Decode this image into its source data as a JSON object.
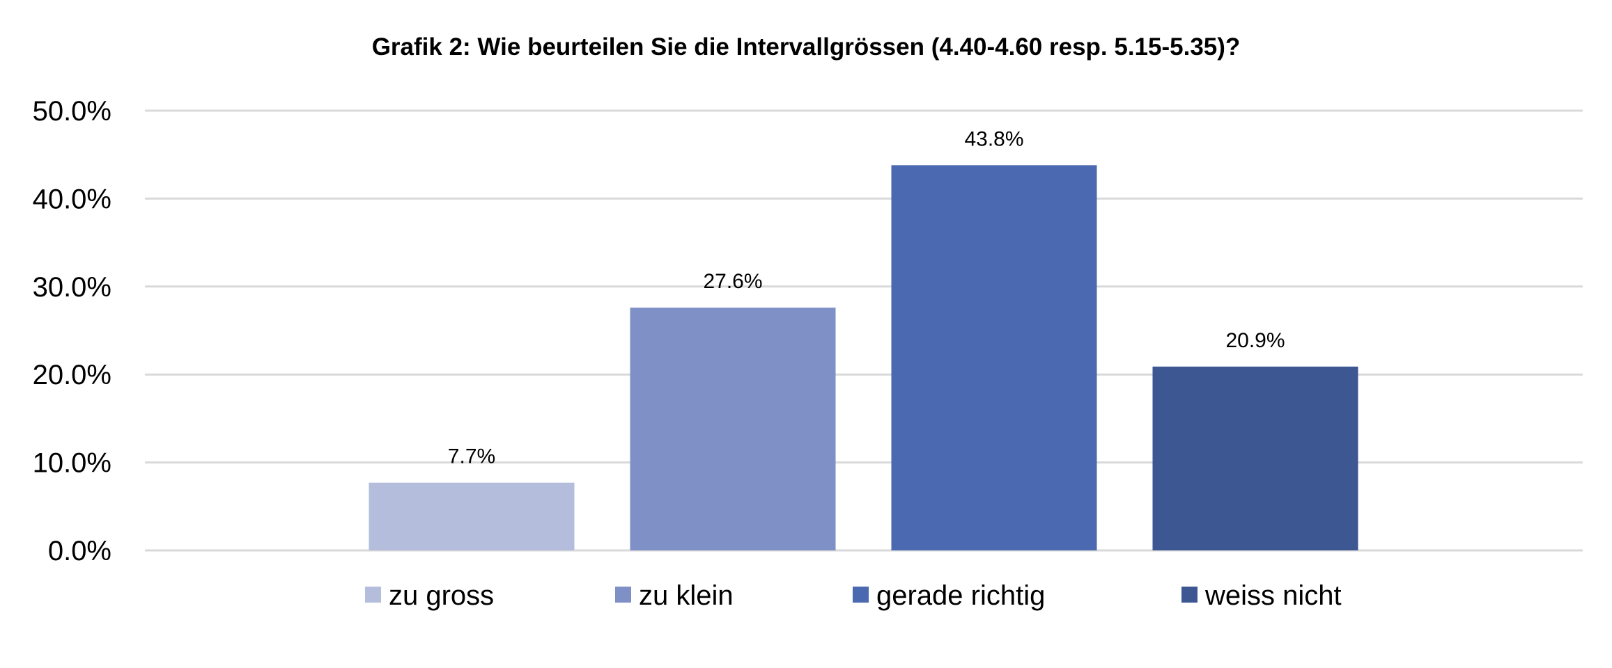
{
  "chart_data": {
    "type": "bar",
    "title": "Grafik 2: Wie beurteilen Sie die Intervallgrössen (4.40-4.60 resp. 5.15-5.35)?",
    "xlabel": "",
    "ylabel": "",
    "ylim": [
      0,
      50
    ],
    "yticks": [
      0,
      10,
      20,
      30,
      40,
      50
    ],
    "ytick_labels": [
      "0.0%",
      "10.0%",
      "20.0%",
      "30.0%",
      "40.0%",
      "50.0%"
    ],
    "grid": true,
    "legend_position": "bottom",
    "categories": [
      "zu gross",
      "zu klein",
      "gerade richtig",
      "weiss nicht"
    ],
    "values": [
      7.7,
      27.6,
      43.8,
      20.9
    ],
    "data_labels": [
      "7.7%",
      "27.6%",
      "43.8%",
      "20.9%"
    ],
    "colors": [
      "#B4BEDC",
      "#7F90C7",
      "#4A69B0",
      "#3D5793"
    ]
  }
}
